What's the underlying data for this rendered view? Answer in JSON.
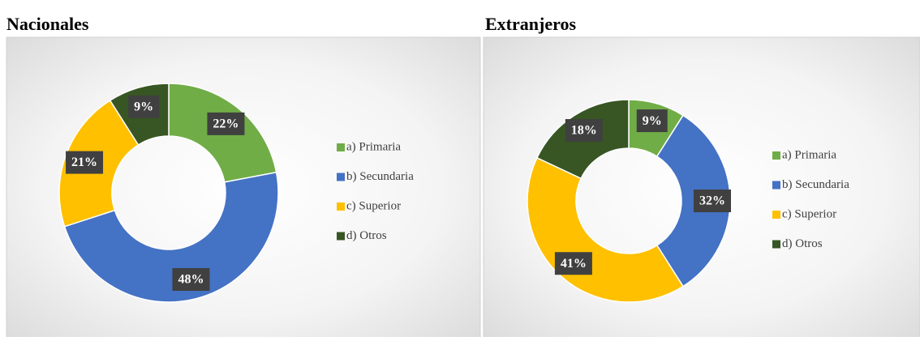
{
  "chart_data": [
    {
      "type": "donut",
      "title": "Nacionales",
      "categories": [
        "a) Primaria",
        "b) Secundaria",
        "c) Superior",
        "d) Otros"
      ],
      "values": [
        22,
        48,
        21,
        9
      ],
      "value_labels": [
        "22%",
        "48%",
        "21%",
        "9%"
      ],
      "colors": [
        "#70ad47",
        "#4472c4",
        "#ffc000",
        "#375623"
      ],
      "legend": "right"
    },
    {
      "type": "donut",
      "title": "Extranjeros",
      "categories": [
        "a) Primaria",
        "b) Secundaria",
        "c) Superior",
        "d) Otros"
      ],
      "values": [
        9,
        32,
        41,
        18
      ],
      "value_labels": [
        "9%",
        "32%",
        "41%",
        "18%"
      ],
      "colors": [
        "#70ad47",
        "#4472c4",
        "#ffc000",
        "#375623"
      ],
      "legend": "right"
    }
  ]
}
